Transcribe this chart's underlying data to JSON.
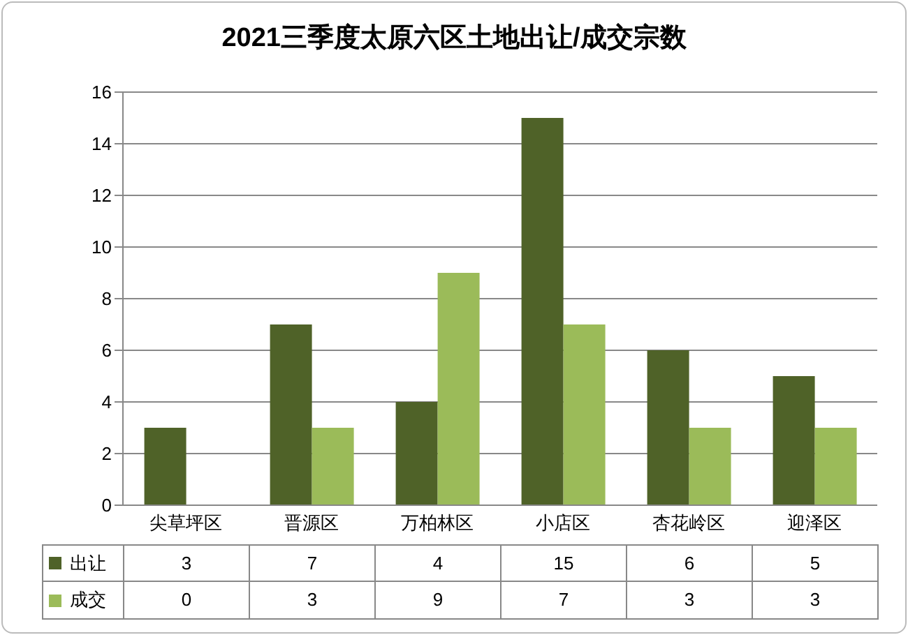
{
  "chart_data": {
    "type": "bar",
    "title": "2021三季度太原六区土地出让/成交宗数",
    "categories": [
      "尖草坪区",
      "晋源区",
      "万柏林区",
      "小店区",
      "杏花岭区",
      "迎泽区"
    ],
    "series": [
      {
        "name": "出让",
        "color": "#4f6228",
        "values": [
          3,
          7,
          4,
          15,
          6,
          5
        ]
      },
      {
        "name": "成交",
        "color": "#9bbb59",
        "values": [
          0,
          3,
          9,
          7,
          3,
          3
        ]
      }
    ],
    "ylim": [
      0,
      16
    ],
    "yticks": [
      0,
      2,
      4,
      6,
      8,
      10,
      12,
      14,
      16
    ],
    "grid": "y",
    "legend": "bottom",
    "data_labels": true
  }
}
